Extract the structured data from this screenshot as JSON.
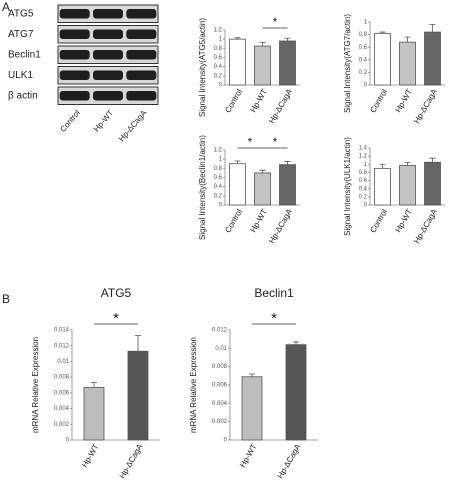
{
  "panels": [
    "A",
    "B"
  ],
  "blot": {
    "proteins": [
      "ATG5",
      "ATG7",
      "Beclin1",
      "ULK1",
      "β actin"
    ],
    "lanes": [
      "Control",
      "Hp-WT",
      "Hp-ΔCagA"
    ]
  },
  "chart_data": [
    {
      "type": "bar",
      "ylabel": "Signal Intensity(ATG5/actin)",
      "categories": [
        "Control",
        "Hp-WT",
        "Hp-ΔCagA"
      ],
      "values": [
        1.0,
        0.85,
        0.96
      ],
      "errors": [
        0.03,
        0.08,
        0.06
      ],
      "colors": [
        "#ffffff",
        "#c4c4c4",
        "#666666"
      ],
      "ylim": [
        0,
        1.2
      ],
      "yticks": [
        0,
        0.2,
        0.4,
        0.6,
        0.8,
        1,
        1.2
      ],
      "significance": [
        {
          "from": 1,
          "to": 2,
          "label": "*"
        }
      ]
    },
    {
      "type": "bar",
      "ylabel": "Signal Intensity(ATG7/actin)",
      "categories": [
        "Control",
        "Hp-WT",
        "Hp-ΔCagA"
      ],
      "values": [
        0.82,
        0.68,
        0.84
      ],
      "errors": [
        0.02,
        0.08,
        0.12
      ],
      "colors": [
        "#ffffff",
        "#c4c4c4",
        "#666666"
      ],
      "ylim": [
        0,
        1
      ],
      "yticks": [
        0,
        0.2,
        0.4,
        0.6,
        0.8,
        1
      ]
    },
    {
      "type": "bar",
      "ylabel": "Signal Intensity(Beclin1/actin)",
      "categories": [
        "Control",
        "Hp-WT",
        "Hp-ΔCagA"
      ],
      "values": [
        0.9,
        0.7,
        0.88
      ],
      "errors": [
        0.06,
        0.06,
        0.07
      ],
      "colors": [
        "#ffffff",
        "#c4c4c4",
        "#666666"
      ],
      "ylim": [
        0,
        1.2
      ],
      "yticks": [
        0,
        0.2,
        0.4,
        0.6,
        0.8,
        1,
        1.2
      ],
      "significance": [
        {
          "from": 0,
          "to": 1,
          "label": "*"
        },
        {
          "from": 1,
          "to": 2,
          "label": "*"
        }
      ]
    },
    {
      "type": "bar",
      "ylabel": "Signal Intensity(ULK1/actin)",
      "categories": [
        "Control",
        "Hp-WT",
        "Hp-ΔCagA"
      ],
      "values": [
        0.9,
        0.97,
        1.05
      ],
      "errors": [
        0.1,
        0.07,
        0.1
      ],
      "colors": [
        "#ffffff",
        "#c4c4c4",
        "#666666"
      ],
      "ylim": [
        0,
        1.4
      ],
      "yticks": [
        0,
        0.2,
        0.4,
        0.6,
        0.8,
        1,
        1.2,
        1.4
      ]
    },
    {
      "type": "bar",
      "title": "ATG5",
      "ylabel": "mRNA Relative Expression",
      "categories": [
        "Hp-WT",
        "Hp-ΔCagA"
      ],
      "values": [
        0.0067,
        0.0113
      ],
      "errors": [
        0.0006,
        0.002
      ],
      "colors": [
        "#bdbdbd",
        "#555555"
      ],
      "ylim": [
        0,
        0.014
      ],
      "yticks": [
        0,
        0.002,
        0.004,
        0.006,
        0.008,
        0.01,
        0.012,
        0.014
      ],
      "significance": [
        {
          "from": 0,
          "to": 1,
          "label": "*"
        }
      ]
    },
    {
      "type": "bar",
      "title": "Beclin1",
      "ylabel": "mRNA Relative Expression",
      "categories": [
        "Hp-WT",
        "Hp-ΔCagA"
      ],
      "values": [
        0.0069,
        0.0104
      ],
      "errors": [
        0.0003,
        0.0003
      ],
      "colors": [
        "#bdbdbd",
        "#555555"
      ],
      "ylim": [
        0,
        0.012
      ],
      "yticks": [
        0,
        0.002,
        0.004,
        0.006,
        0.008,
        0.01,
        0.012
      ],
      "significance": [
        {
          "from": 0,
          "to": 1,
          "label": "*"
        }
      ]
    }
  ]
}
